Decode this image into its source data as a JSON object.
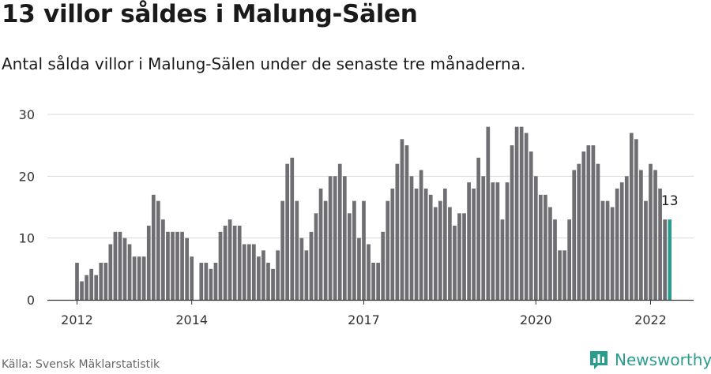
{
  "header": {
    "title": "13 villor såldes i Malung-Sälen",
    "subtitle": "Antal sålda villor i Malung-Sälen under de senaste tre månaderna."
  },
  "footer": {
    "source": "Källa: Svensk Mäklarstatistik",
    "brand": "Newsworthy"
  },
  "colors": {
    "bar": "#6e6e73",
    "highlight": "#2a9d8f",
    "grid": "#d9d9d9",
    "axis": "#333333"
  },
  "chart_data": {
    "type": "bar",
    "title": "13 villor såldes i Malung-Sälen",
    "xlabel": "",
    "ylabel": "",
    "ylim": [
      0,
      30
    ],
    "yticks": [
      0,
      10,
      20,
      30
    ],
    "xticks": [
      {
        "label": "2012",
        "index": 0
      },
      {
        "label": "2014",
        "index": 24
      },
      {
        "label": "2017",
        "index": 60
      },
      {
        "label": "2020",
        "index": 96
      },
      {
        "label": "2022",
        "index": 120
      }
    ],
    "values": [
      6,
      3,
      4,
      5,
      4,
      6,
      6,
      9,
      11,
      11,
      10,
      9,
      7,
      7,
      7,
      12,
      17,
      16,
      13,
      11,
      11,
      11,
      11,
      10,
      7,
      0,
      6,
      6,
      5,
      6,
      11,
      12,
      13,
      12,
      12,
      9,
      9,
      9,
      7,
      8,
      6,
      5,
      8,
      16,
      22,
      23,
      16,
      10,
      8,
      11,
      14,
      18,
      16,
      20,
      20,
      22,
      20,
      14,
      16,
      10,
      16,
      9,
      6,
      6,
      11,
      16,
      18,
      22,
      26,
      25,
      20,
      18,
      21,
      18,
      17,
      15,
      16,
      18,
      15,
      12,
      14,
      14,
      19,
      18,
      23,
      20,
      28,
      19,
      19,
      13,
      19,
      25,
      28,
      28,
      27,
      24,
      20,
      17,
      17,
      15,
      13,
      8,
      8,
      13,
      21,
      22,
      24,
      25,
      25,
      22,
      16,
      16,
      15,
      18,
      19,
      20,
      27,
      26,
      21,
      16,
      22,
      21,
      18,
      13,
      13
    ],
    "highlight_index": 124,
    "annotation": {
      "label": "13",
      "index": 124
    }
  }
}
